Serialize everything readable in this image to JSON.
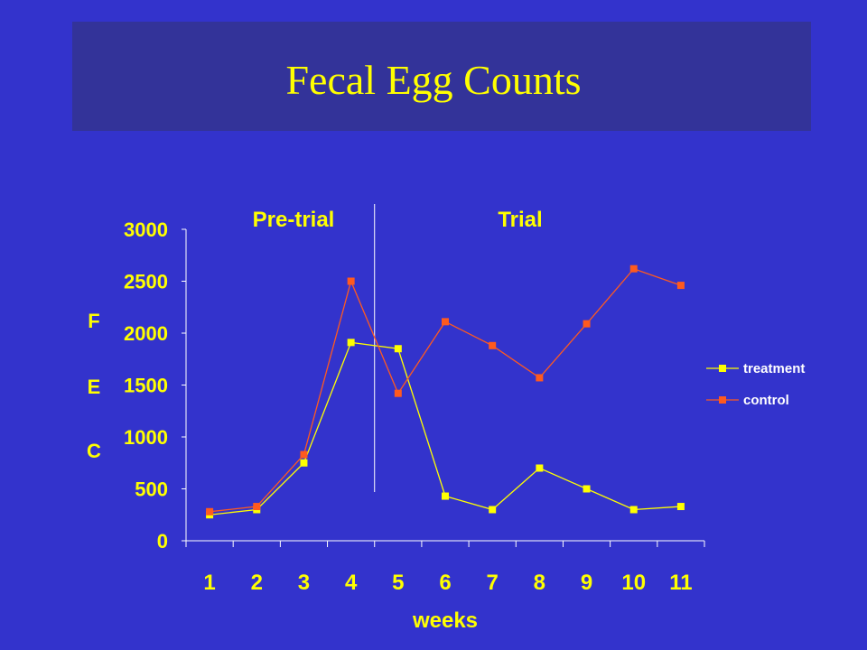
{
  "slide": {
    "title": "Fecal Egg Counts"
  },
  "colors": {
    "background": "#3333cc",
    "title_band": "#333399",
    "text": "#ffff00",
    "axis": "#ffffff",
    "treatment": "#ffff00",
    "control": "#ff5a1f"
  },
  "chart_data": {
    "type": "line",
    "title": "",
    "xlabel": "weeks",
    "ylabel": "FEC",
    "ylabel_letters": [
      "F",
      "E",
      "C"
    ],
    "categories": [
      "1",
      "2",
      "3",
      "4",
      "5",
      "6",
      "7",
      "8",
      "9",
      "10",
      "11"
    ],
    "y_ticks": [
      "0",
      "500",
      "1000",
      "1500",
      "2000",
      "2500",
      "3000"
    ],
    "ylim": [
      0,
      3000
    ],
    "grid": false,
    "legend_position": "right",
    "period_labels": [
      "Pre-trial",
      "Trial"
    ],
    "period_divider_between": [
      "4",
      "5"
    ],
    "series": [
      {
        "name": "treatment",
        "color": "#ffff00",
        "values": [
          250,
          300,
          750,
          1910,
          1850,
          430,
          300,
          700,
          500,
          300,
          330
        ]
      },
      {
        "name": "control",
        "color": "#ff5a1f",
        "values": [
          280,
          330,
          830,
          2500,
          1420,
          2110,
          1880,
          1570,
          2090,
          2620,
          2460
        ]
      }
    ]
  }
}
